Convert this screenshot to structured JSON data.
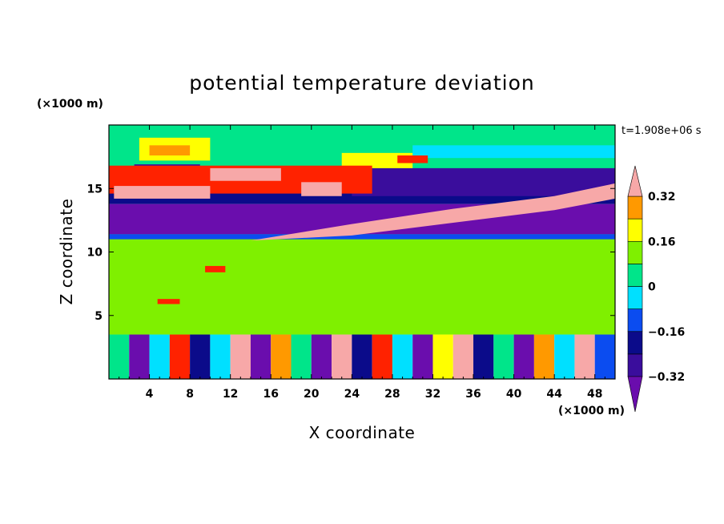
{
  "chart_data": {
    "type": "heatmap",
    "title": "potential temperature deviation",
    "xlabel": "X coordinate",
    "ylabel": "Z coordinate",
    "x_unit": "(×1000 m)",
    "y_unit": "(×1000 m)",
    "time_label": "t=1.908e+06 s",
    "xlim": [
      0,
      50
    ],
    "ylim": [
      0,
      20
    ],
    "x_ticks": [
      4,
      8,
      12,
      16,
      20,
      24,
      28,
      32,
      36,
      40,
      44,
      48
    ],
    "x_tick_labels": [
      "4",
      "8",
      "12",
      "16",
      "20",
      "24",
      "28",
      "32",
      "36",
      "40",
      "44",
      "48"
    ],
    "y_ticks": [
      5,
      10,
      15
    ],
    "y_tick_labels": [
      "5",
      "10",
      "15"
    ],
    "grid": false,
    "colorbar": {
      "placement": "right",
      "levels": [
        -0.4,
        -0.32,
        -0.24,
        -0.16,
        -0.08,
        0,
        0.08,
        0.16,
        0.24,
        0.32,
        0.4
      ],
      "tick_values": [
        0.32,
        0.16,
        0,
        -0.16,
        -0.32
      ],
      "tick_labels": [
        "0.32",
        "0.16",
        "0",
        "−0.16",
        "−0.32"
      ],
      "colors": [
        "#6a0dad",
        "#3a0d9c",
        "#0b0b8a",
        "#0b4cf0",
        "#00e0ff",
        "#00e58a",
        "#7ff000",
        "#ffff00",
        "#ff9900",
        "#ff2200",
        "#f7a8a8"
      ],
      "extend": "both"
    },
    "regions": [
      {
        "x0": 0,
        "x1": 50,
        "y0": 3.5,
        "y1": 20,
        "color": "#00e58a"
      },
      {
        "x0": 0,
        "x1": 50,
        "y0": 3.5,
        "y1": 11.2,
        "color": "#7ff000"
      },
      {
        "x0": 0,
        "x1": 50,
        "y0": 11,
        "y1": 11.4,
        "color": "#0b4cf0"
      },
      {
        "x0": 0,
        "x1": 50,
        "y0": 11.4,
        "y1": 13.8,
        "color": "#6a0dad"
      },
      {
        "x0": 0,
        "x1": 50,
        "y0": 13.8,
        "y1": 15.6,
        "color": "#0b0b8a"
      },
      {
        "x0": 0,
        "x1": 50,
        "y0": 15.6,
        "y1": 16.6,
        "color": "#7ff000"
      },
      {
        "x0": 0,
        "x1": 50,
        "y0": 16.6,
        "y1": 20,
        "color": "#00e58a"
      },
      {
        "x0": 2.5,
        "x1": 9,
        "y0": 15.4,
        "y1": 16.9,
        "color": "#3a0d9c"
      },
      {
        "x0": 24,
        "x1": 50,
        "y0": 14.4,
        "y1": 16.6,
        "color": "#3a0d9c"
      },
      {
        "x0": 30,
        "x1": 50,
        "y0": 17.4,
        "y1": 18.4,
        "color": "#00e0ff"
      },
      {
        "x0": 3,
        "x1": 10,
        "y0": 17.2,
        "y1": 19,
        "color": "#ffff00"
      },
      {
        "x0": 4,
        "x1": 8,
        "y0": 17.6,
        "y1": 18.4,
        "color": "#ff9900"
      },
      {
        "x0": 23,
        "x1": 30,
        "y0": 16.6,
        "y1": 17.8,
        "color": "#ffff00"
      },
      {
        "x0": 28.5,
        "x1": 31.5,
        "y0": 17,
        "y1": 17.6,
        "color": "#ff2200"
      },
      {
        "x0": 0,
        "x1": 26,
        "y0": 14.6,
        "y1": 16.8,
        "color": "#ff2200"
      },
      {
        "x0": 10,
        "x1": 17,
        "y0": 15.6,
        "y1": 16.6,
        "color": "#f7a8a8"
      },
      {
        "x0": 0.5,
        "x1": 10,
        "y0": 14.2,
        "y1": 15.2,
        "color": "#f7a8a8"
      },
      {
        "x0": 19,
        "x1": 23,
        "y0": 14.4,
        "y1": 15.5,
        "color": "#f7a8a8"
      },
      {
        "x0": 9.5,
        "x1": 11.5,
        "y0": 8.4,
        "y1": 8.9,
        "color": "#ff2200"
      },
      {
        "x0": 4.8,
        "x1": 7,
        "y0": 5.9,
        "y1": 6.3,
        "color": "#ff2200"
      }
    ],
    "bands": [
      {
        "points": [
          [
            14,
            10.9
          ],
          [
            24,
            12.2
          ],
          [
            34,
            13.4
          ],
          [
            44,
            14.4
          ],
          [
            50,
            15.4
          ],
          [
            50,
            14.2
          ],
          [
            44,
            13.3
          ],
          [
            34,
            12.3
          ],
          [
            24,
            11.3
          ],
          [
            14,
            10.9
          ]
        ],
        "color": "#f7a8a8"
      }
    ],
    "boundary_layer": {
      "y_top": 3.5,
      "cells": [
        {
          "x0": 0,
          "x1": 2,
          "color": "#00e58a"
        },
        {
          "x0": 2,
          "x1": 4,
          "color": "#6a0dad"
        },
        {
          "x0": 4,
          "x1": 6,
          "color": "#00e0ff"
        },
        {
          "x0": 6,
          "x1": 8,
          "color": "#ff2200"
        },
        {
          "x0": 8,
          "x1": 10,
          "color": "#0b0b8a"
        },
        {
          "x0": 10,
          "x1": 12,
          "color": "#00e0ff"
        },
        {
          "x0": 12,
          "x1": 14,
          "color": "#f7a8a8"
        },
        {
          "x0": 14,
          "x1": 16,
          "color": "#6a0dad"
        },
        {
          "x0": 16,
          "x1": 18,
          "color": "#ff9900"
        },
        {
          "x0": 18,
          "x1": 20,
          "color": "#00e58a"
        },
        {
          "x0": 20,
          "x1": 22,
          "color": "#6a0dad"
        },
        {
          "x0": 22,
          "x1": 24,
          "color": "#f7a8a8"
        },
        {
          "x0": 24,
          "x1": 26,
          "color": "#0b0b8a"
        },
        {
          "x0": 26,
          "x1": 28,
          "color": "#ff2200"
        },
        {
          "x0": 28,
          "x1": 30,
          "color": "#00e0ff"
        },
        {
          "x0": 30,
          "x1": 32,
          "color": "#6a0dad"
        },
        {
          "x0": 32,
          "x1": 34,
          "color": "#ffff00"
        },
        {
          "x0": 34,
          "x1": 36,
          "color": "#f7a8a8"
        },
        {
          "x0": 36,
          "x1": 38,
          "color": "#0b0b8a"
        },
        {
          "x0": 38,
          "x1": 40,
          "color": "#00e58a"
        },
        {
          "x0": 40,
          "x1": 42,
          "color": "#6a0dad"
        },
        {
          "x0": 42,
          "x1": 44,
          "color": "#ff9900"
        },
        {
          "x0": 44,
          "x1": 46,
          "color": "#00e0ff"
        },
        {
          "x0": 46,
          "x1": 48,
          "color": "#f7a8a8"
        },
        {
          "x0": 48,
          "x1": 50,
          "color": "#0b4cf0"
        }
      ]
    }
  }
}
